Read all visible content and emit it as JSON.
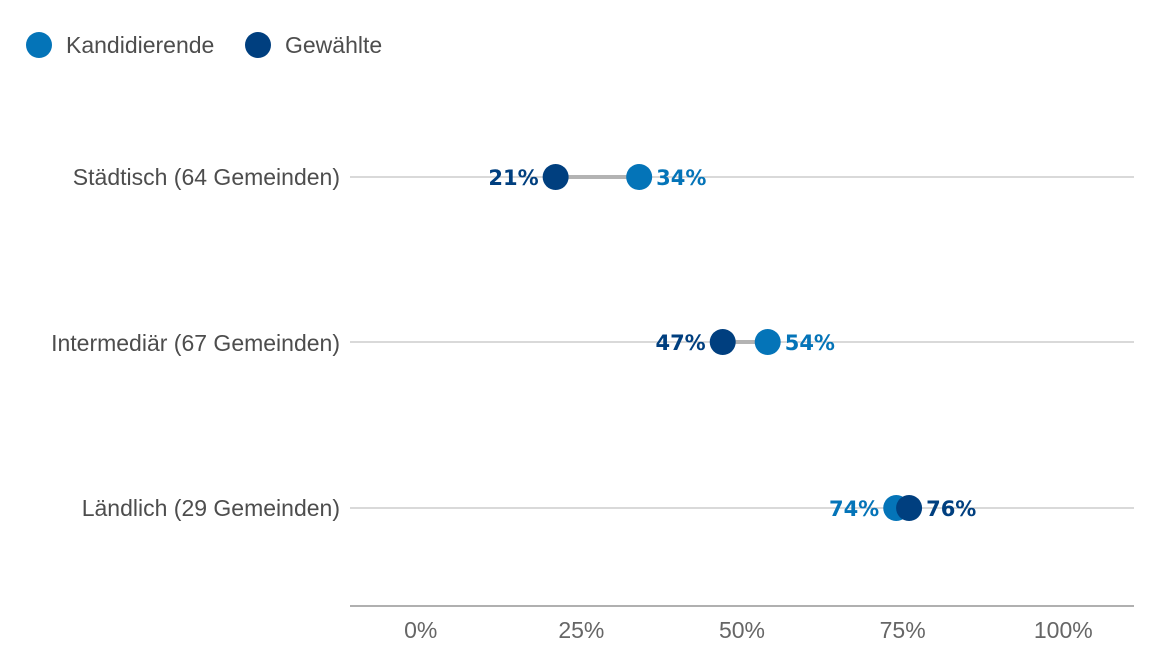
{
  "chart_data": {
    "type": "dumbbell",
    "legend": {
      "placement": "top-left",
      "entries": [
        {
          "name": "Kandidierende",
          "color": "#0474b8"
        },
        {
          "name": "Gewählte",
          "color": "#003f7f"
        }
      ]
    },
    "categories": [
      "Städtisch (64 Gemeinden)",
      "Intermediär (67 Gemeinden)",
      "Ländlich (29 Gemeinden)"
    ],
    "series": [
      {
        "name": "Kandidierende",
        "values": [
          34,
          54,
          74
        ],
        "labels": [
          "34%",
          "54%",
          "74%"
        ]
      },
      {
        "name": "Gewählte",
        "values": [
          21,
          47,
          76
        ],
        "labels": [
          "21%",
          "47%",
          "76%"
        ]
      }
    ],
    "xlim": [
      -11,
      111
    ],
    "x_ticks": [
      0,
      25,
      50,
      75,
      100
    ],
    "x_tick_labels": [
      "0%",
      "25%",
      "50%",
      "75%",
      "100%"
    ],
    "grid": "horizontal-per-category",
    "colors": {
      "connector": "#b3b3b3",
      "gridline": "#b3b3b3",
      "axis": "#808080"
    }
  }
}
